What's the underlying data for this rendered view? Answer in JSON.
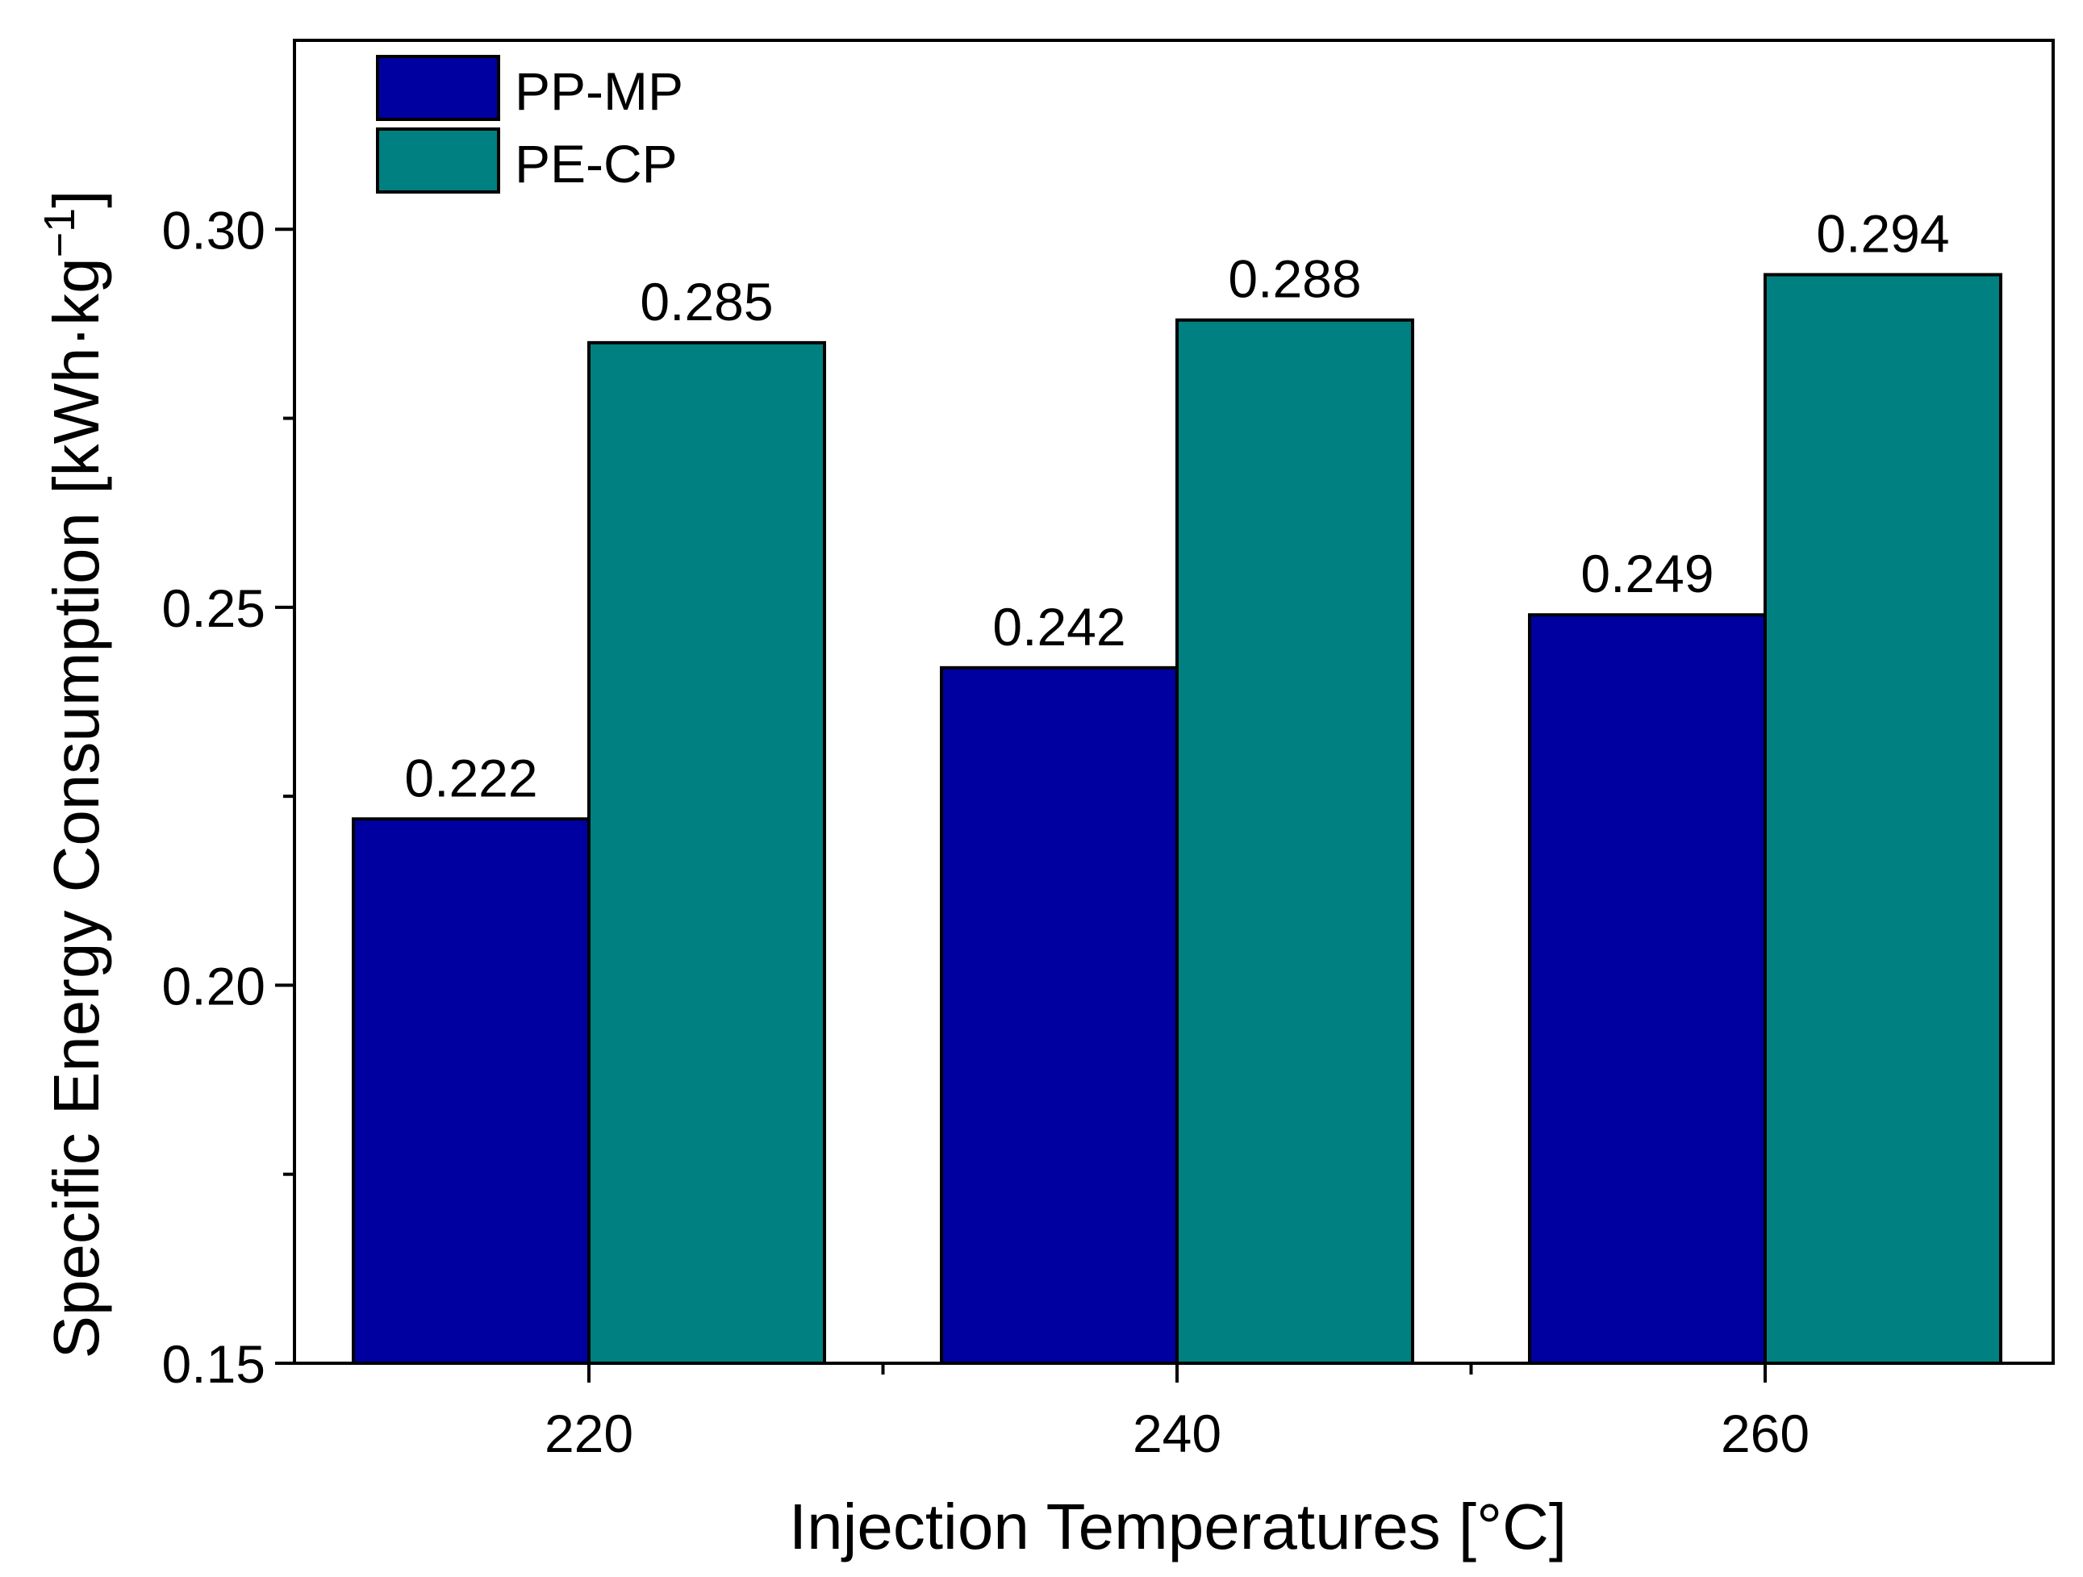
{
  "chart_data": {
    "type": "bar",
    "title": "",
    "xlabel": "Injection Temperatures [°C]",
    "ylabel": {
      "main": "Specific Energy Consumption [kWh·kg",
      "superscript": "−1",
      "close": "]"
    },
    "categories": [
      "220",
      "240",
      "260"
    ],
    "series": [
      {
        "name": "PP-MP",
        "color": "#0000a0",
        "values": [
          0.222,
          0.242,
          0.249
        ],
        "labels": [
          "0.222",
          "0.242",
          "0.249"
        ]
      },
      {
        "name": "PE-CP",
        "color": "#008080",
        "values": [
          0.285,
          0.288,
          0.294
        ],
        "labels": [
          "0.285",
          "0.288",
          "0.294"
        ]
      }
    ],
    "ylim": [
      0.15,
      0.325
    ],
    "yticks": [
      0.15,
      0.2,
      0.25,
      0.3
    ],
    "ytick_labels": [
      "0.15",
      "0.20",
      "0.25",
      "0.30"
    ],
    "grid": false,
    "legend_position": "top-left"
  }
}
